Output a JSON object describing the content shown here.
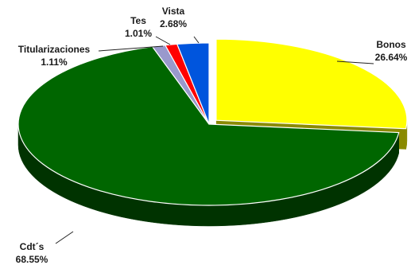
{
  "chart_data": {
    "type": "pie",
    "title": "",
    "style": "3d-exploded",
    "slices": [
      {
        "name": "Bonos",
        "value": 26.64,
        "value_label": "26.64%",
        "color": "#ffff00",
        "side_color": "#8a8a00",
        "exploded": true
      },
      {
        "name": "Cdt´s",
        "value": 68.55,
        "value_label": "68.55%",
        "color": "#006600",
        "side_color": "#003300",
        "exploded": false
      },
      {
        "name": "Titularizaciones",
        "value": 1.11,
        "value_label": "1.11%",
        "color": "#9999cc",
        "side_color": "#555577",
        "exploded": false
      },
      {
        "name": "Tes",
        "value": 1.01,
        "value_label": "1.01%",
        "color": "#ff0000",
        "side_color": "#880000",
        "exploded": false
      },
      {
        "name": "Vista",
        "value": 2.68,
        "value_label": "2.68%",
        "color": "#0055dd",
        "side_color": "#002a77",
        "exploded": false
      }
    ],
    "legend": "none"
  }
}
